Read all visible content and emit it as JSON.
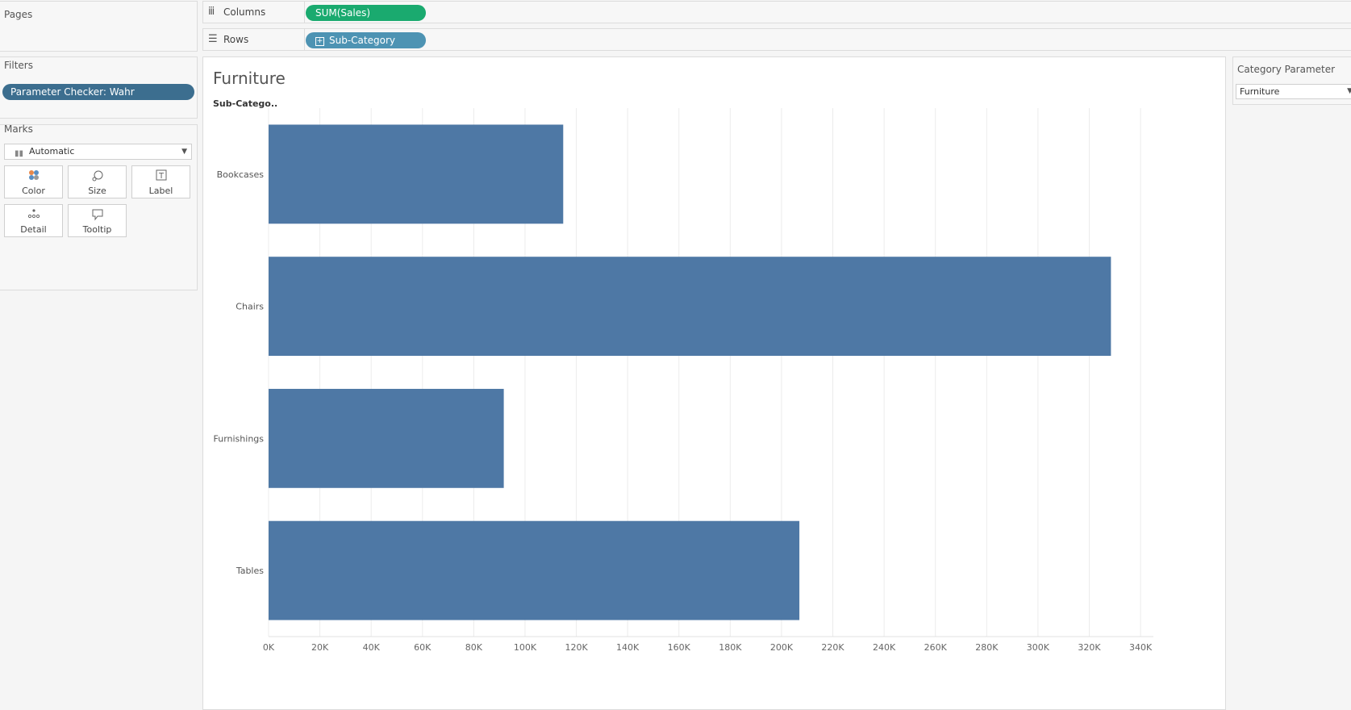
{
  "pages_panel": {
    "title": "Pages"
  },
  "filters_panel": {
    "title": "Filters",
    "pill": "Parameter Checker: Wahr"
  },
  "marks_panel": {
    "title": "Marks",
    "mark_type": "Automatic",
    "cards": [
      {
        "label": "Color",
        "icon": "color-icon"
      },
      {
        "label": "Size",
        "icon": "size-icon"
      },
      {
        "label": "Label",
        "icon": "label-icon"
      },
      {
        "label": "Detail",
        "icon": "detail-icon"
      },
      {
        "label": "Tooltip",
        "icon": "tooltip-icon"
      }
    ]
  },
  "shelves": {
    "columns": {
      "label": "Columns",
      "pill": "SUM(Sales)"
    },
    "rows": {
      "label": "Rows",
      "pill": "Sub-Category"
    }
  },
  "viz": {
    "title": "Furniture",
    "row_header": "Sub-Catego.."
  },
  "parameter": {
    "title": "Category Parameter",
    "value": "Furniture"
  },
  "colors": {
    "bar": "#4e78a5",
    "columns_pill": "#1aaa6f",
    "rows_pill": "#4d93b3",
    "filter_pill": "#3c6e8f"
  },
  "chart_data": {
    "type": "bar",
    "orientation": "horizontal",
    "categories": [
      "Bookcases",
      "Chairs",
      "Furnishings",
      "Tables"
    ],
    "values": [
      114880,
      328449,
      91705,
      206966
    ],
    "xlim": [
      0,
      345000
    ],
    "x_ticks": [
      "0K",
      "20K",
      "40K",
      "60K",
      "80K",
      "100K",
      "120K",
      "140K",
      "160K",
      "180K",
      "200K",
      "220K",
      "240K",
      "260K",
      "280K",
      "300K",
      "320K",
      "340K"
    ],
    "x_tick_values": [
      0,
      20000,
      40000,
      60000,
      80000,
      100000,
      120000,
      140000,
      160000,
      180000,
      200000,
      220000,
      240000,
      260000,
      280000,
      300000,
      320000,
      340000
    ],
    "grid": "vertical"
  }
}
